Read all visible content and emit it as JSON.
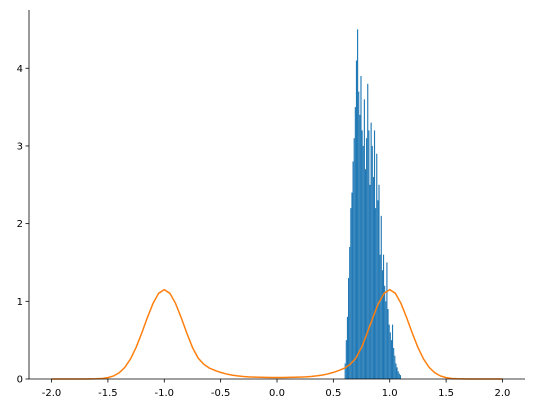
{
  "chart_data": {
    "type": "histogram",
    "color": "#1f77b4",
    "bins": [
      0.6,
      0.61,
      0.62,
      0.63,
      0.64,
      0.65,
      0.66,
      0.67,
      0.68,
      0.69,
      0.7,
      0.71,
      0.72,
      0.73,
      0.74,
      0.75,
      0.76,
      0.77,
      0.78,
      0.79,
      0.8,
      0.81,
      0.82,
      0.83,
      0.84,
      0.85,
      0.86,
      0.87,
      0.88,
      0.89,
      0.9,
      0.91,
      0.92,
      0.93,
      0.94,
      0.95,
      0.96,
      0.97,
      0.98,
      0.99,
      1.0,
      1.01,
      1.02,
      1.03,
      1.04,
      1.05,
      1.06,
      1.07,
      1.08,
      1.09,
      1.1
    ],
    "counts": [
      0.2,
      0.5,
      0.8,
      1.3,
      1.7,
      2.2,
      2.4,
      2.8,
      3.1,
      3.5,
      4.1,
      4.5,
      3.7,
      3.4,
      3.9,
      3.2,
      3.0,
      3.6,
      2.7,
      3.1,
      3.8,
      3.2,
      2.5,
      3.3,
      3.0,
      2.6,
      3.2,
      2.2,
      2.9,
      2.3,
      2.5,
      1.6,
      2.1,
      1.4,
      1.6,
      1.2,
      1.0,
      1.5,
      0.9,
      0.7,
      0.6,
      0.5,
      0.7,
      0.4,
      0.3,
      0.2,
      0.15,
      0.1,
      0.07,
      0.05
    ],
    "line": {
      "type": "line",
      "color": "#ff7f0e",
      "x": [
        -2.0,
        -1.95,
        -1.9,
        -1.85,
        -1.8,
        -1.75,
        -1.7,
        -1.65,
        -1.6,
        -1.55,
        -1.5,
        -1.45,
        -1.4,
        -1.35,
        -1.3,
        -1.25,
        -1.2,
        -1.15,
        -1.1,
        -1.05,
        -1.0,
        -0.95,
        -0.9,
        -0.85,
        -0.8,
        -0.75,
        -0.7,
        -0.65,
        -0.6,
        -0.55,
        -0.5,
        -0.45,
        -0.4,
        -0.35,
        -0.3,
        -0.25,
        -0.2,
        -0.15,
        -0.1,
        -0.05,
        0.0,
        0.05,
        0.1,
        0.15,
        0.2,
        0.25,
        0.3,
        0.35,
        0.4,
        0.45,
        0.5,
        0.55,
        0.6,
        0.65,
        0.7,
        0.75,
        0.8,
        0.85,
        0.9,
        0.95,
        1.0,
        1.05,
        1.1,
        1.15,
        1.2,
        1.25,
        1.3,
        1.35,
        1.4,
        1.45,
        1.5,
        1.55,
        1.6,
        1.65,
        1.7,
        1.75,
        1.8,
        1.85,
        1.9,
        1.95,
        2.0
      ],
      "values": [
        0,
        0,
        0,
        0,
        0,
        0,
        0,
        0.001,
        0.003,
        0.007,
        0.018,
        0.039,
        0.08,
        0.149,
        0.257,
        0.406,
        0.59,
        0.79,
        0.973,
        1.103,
        1.15,
        1.103,
        0.973,
        0.79,
        0.59,
        0.406,
        0.27,
        0.19,
        0.14,
        0.11,
        0.085,
        0.065,
        0.05,
        0.04,
        0.032,
        0.027,
        0.024,
        0.022,
        0.021,
        0.02,
        0.02,
        0.02,
        0.021,
        0.022,
        0.024,
        0.027,
        0.032,
        0.04,
        0.05,
        0.065,
        0.085,
        0.11,
        0.14,
        0.19,
        0.27,
        0.406,
        0.59,
        0.79,
        0.973,
        1.103,
        1.15,
        1.103,
        0.973,
        0.79,
        0.59,
        0.406,
        0.257,
        0.149,
        0.08,
        0.039,
        0.018,
        0.007,
        0.003,
        0.001,
        0,
        0,
        0,
        0,
        0,
        0,
        0
      ]
    },
    "xlim": [
      -2.2,
      2.2
    ],
    "ylim": [
      0,
      4.75
    ],
    "xticks": [
      {
        "value": -2.0,
        "label": "-2.0"
      },
      {
        "value": -1.5,
        "label": "-1.5"
      },
      {
        "value": -1.0,
        "label": "-1.0"
      },
      {
        "value": -0.5,
        "label": "-0.5"
      },
      {
        "value": 0.0,
        "label": "0.0"
      },
      {
        "value": 0.5,
        "label": "0.5"
      },
      {
        "value": 1.0,
        "label": "1.0"
      },
      {
        "value": 1.5,
        "label": "1.5"
      },
      {
        "value": 2.0,
        "label": "2.0"
      }
    ],
    "yticks": [
      0,
      1,
      2,
      3,
      4
    ]
  }
}
